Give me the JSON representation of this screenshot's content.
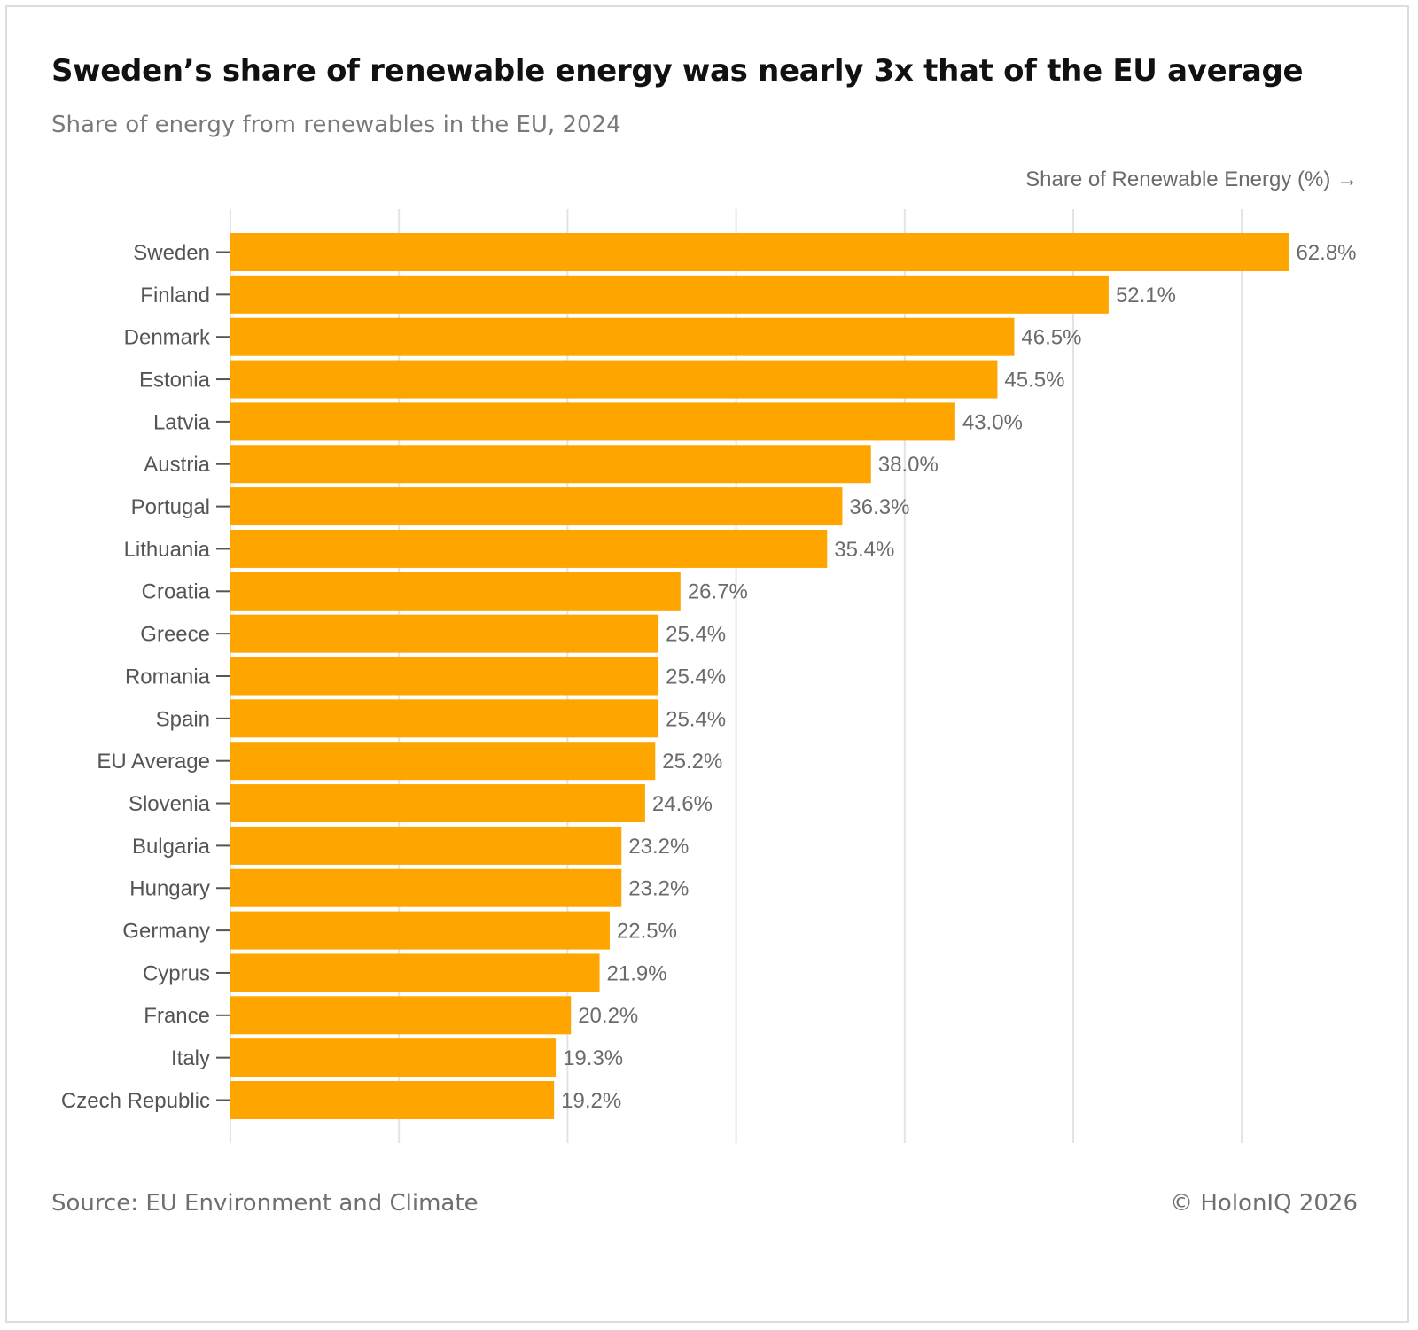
{
  "title": "Sweden’s share of renewable energy was nearly 3x that of the EU average",
  "subtitle": "Share of energy from renewables in the EU, 2024",
  "footer": {
    "source": "Source: EU Environment and Climate",
    "credit": "© HolonIQ 2026"
  },
  "colors": {
    "bar": "#FFA500",
    "grid": "#e3e3e3",
    "label": "#555555",
    "value_label": "#6b6b6b"
  },
  "chart_data": {
    "type": "bar",
    "orientation": "horizontal",
    "xlabel": "Share of Renewable Energy (%) →",
    "ylabel": "",
    "xlim": [
      0,
      65
    ],
    "grid": true,
    "grid_step": 10,
    "x_tick_labels_shown": false,
    "value_suffix": "%",
    "categories": [
      "Sweden",
      "Finland",
      "Denmark",
      "Estonia",
      "Latvia",
      "Austria",
      "Portugal",
      "Lithuania",
      "Croatia",
      "Greece",
      "Romania",
      "Spain",
      "EU Average",
      "Slovenia",
      "Bulgaria",
      "Hungary",
      "Germany",
      "Cyprus",
      "France",
      "Italy",
      "Czech Republic"
    ],
    "values": [
      62.8,
      52.1,
      46.5,
      45.5,
      43.0,
      38.0,
      36.3,
      35.4,
      26.7,
      25.4,
      25.4,
      25.4,
      25.2,
      24.6,
      23.2,
      23.2,
      22.5,
      21.9,
      20.2,
      19.3,
      19.2
    ],
    "value_labels": [
      "62.8%",
      "52.1%",
      "46.5%",
      "45.5%",
      "43.0%",
      "38.0%",
      "36.3%",
      "35.4%",
      "26.7%",
      "25.4%",
      "25.4%",
      "25.4%",
      "25.2%",
      "24.6%",
      "23.2%",
      "23.2%",
      "22.5%",
      "21.9%",
      "20.2%",
      "19.3%",
      "19.2%"
    ]
  }
}
